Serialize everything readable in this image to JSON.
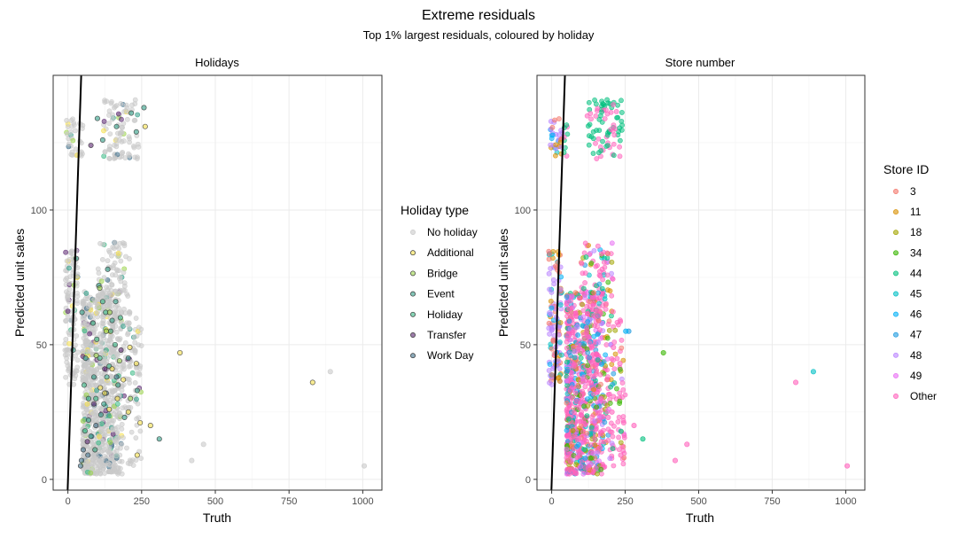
{
  "title": "Extreme residuals",
  "subtitle": "Top 1% largest residuals, coloured by holiday",
  "colors": {
    "no_holiday": "#c9c9c9",
    "additional": "#f5e04a",
    "bridge": "#9bd34a",
    "event": "#2e9c86",
    "holiday": "#37b883",
    "transfer": "#5a2570",
    "work_day": "#3f6f8a",
    "grid": "#ebebeb",
    "border": "#333333",
    "diagonal": "#000000"
  },
  "chart_data": [
    {
      "type": "scatter",
      "panel_title": "Holidays",
      "xlabel": "Truth",
      "ylabel": "Predicted unit sales",
      "xlim": [
        -50,
        1065
      ],
      "ylim": [
        -4,
        150
      ],
      "x_ticks": [
        0,
        250,
        500,
        750,
        1000
      ],
      "x_tick_labels": [
        "0",
        "250",
        "500",
        "750",
        "1000"
      ],
      "y_ticks": [
        0,
        50,
        100
      ],
      "y_tick_labels": [
        "0",
        "50",
        "100"
      ],
      "grid": true,
      "reference_line": {
        "slope": 3.35,
        "intercept": -1
      },
      "legend": {
        "title": "Holiday type",
        "position": "right",
        "entries": [
          {
            "label": "No holiday",
            "color": "#c9c9c9"
          },
          {
            "label": "Additional",
            "color": "#f5e04a"
          },
          {
            "label": "Bridge",
            "color": "#9bd34a"
          },
          {
            "label": "Event",
            "color": "#2e9c86"
          },
          {
            "label": "Holiday",
            "color": "#37b883"
          },
          {
            "label": "Transfer",
            "color": "#5a2570"
          },
          {
            "label": "Work Day",
            "color": "#3f6f8a"
          }
        ]
      },
      "points": [
        {
          "x": 100,
          "y": 134,
          "c": 3
        },
        {
          "x": 165,
          "y": 131,
          "c": 3
        },
        {
          "x": 215,
          "y": 136,
          "c": 3
        },
        {
          "x": 232,
          "y": 129,
          "c": 3
        },
        {
          "x": 258,
          "y": 138,
          "c": 3
        },
        {
          "x": 78,
          "y": 124,
          "c": 5
        },
        {
          "x": 118,
          "y": 126,
          "c": 3
        },
        {
          "x": 235,
          "y": 33,
          "c": 3
        },
        {
          "x": 192,
          "y": 23,
          "c": 3
        },
        {
          "x": 310,
          "y": 15,
          "c": 3
        },
        {
          "x": 28,
          "y": 82,
          "c": 3
        },
        {
          "x": 18,
          "y": 48,
          "c": 3
        },
        {
          "x": 105,
          "y": 72,
          "c": 3
        },
        {
          "x": 135,
          "y": 78,
          "c": 3
        },
        {
          "x": 60,
          "y": 45,
          "c": 3
        },
        {
          "x": 150,
          "y": 59,
          "c": 3
        },
        {
          "x": 88,
          "y": 38,
          "c": 3
        },
        {
          "x": 170,
          "y": 35,
          "c": 3
        },
        {
          "x": 78,
          "y": 16,
          "c": 3
        },
        {
          "x": 122,
          "y": 28,
          "c": 3
        },
        {
          "x": 205,
          "y": 45,
          "c": 3
        },
        {
          "x": 48,
          "y": 62,
          "c": 3
        },
        {
          "x": 112,
          "y": 24,
          "c": 3
        },
        {
          "x": 145,
          "y": 55,
          "c": 3
        },
        {
          "x": 162,
          "y": 66,
          "c": 3
        },
        {
          "x": 92,
          "y": 11,
          "c": 3
        },
        {
          "x": 70,
          "y": 22,
          "c": 3
        },
        {
          "x": 132,
          "y": 38,
          "c": 3
        },
        {
          "x": 55,
          "y": 35,
          "c": 4
        },
        {
          "x": 98,
          "y": 52,
          "c": 4
        },
        {
          "x": 118,
          "y": 66,
          "c": 4
        },
        {
          "x": 85,
          "y": 58,
          "c": 4
        },
        {
          "x": 140,
          "y": 42,
          "c": 4
        },
        {
          "x": 70,
          "y": 30,
          "c": 4
        },
        {
          "x": 160,
          "y": 50,
          "c": 4
        },
        {
          "x": 108,
          "y": 45,
          "c": 4
        },
        {
          "x": 95,
          "y": 30,
          "c": 4
        },
        {
          "x": 58,
          "y": 18,
          "c": 4
        },
        {
          "x": 128,
          "y": 62,
          "c": 4
        },
        {
          "x": 178,
          "y": 60,
          "c": 4
        },
        {
          "x": 43,
          "y": 5,
          "c": 6
        },
        {
          "x": 46,
          "y": 7,
          "c": 6
        },
        {
          "x": 52,
          "y": 11,
          "c": 6
        },
        {
          "x": 68,
          "y": 9,
          "c": 6
        },
        {
          "x": 95,
          "y": 20,
          "c": 6
        },
        {
          "x": 130,
          "y": 32,
          "c": 6
        },
        {
          "x": 165,
          "y": 38,
          "c": 6
        },
        {
          "x": 180,
          "y": 48,
          "c": 5
        },
        {
          "x": 125,
          "y": 41,
          "c": 5
        },
        {
          "x": 88,
          "y": 28,
          "c": 5
        },
        {
          "x": 66,
          "y": 14,
          "c": 5
        },
        {
          "x": 380,
          "y": 47,
          "c": 1
        },
        {
          "x": 830,
          "y": 36,
          "c": 1
        },
        {
          "x": 280,
          "y": 20,
          "c": 1
        },
        {
          "x": 245,
          "y": 21,
          "c": 1
        },
        {
          "x": 168,
          "y": 30,
          "c": 1
        },
        {
          "x": 205,
          "y": 25,
          "c": 1
        },
        {
          "x": 210,
          "y": 49,
          "c": 1
        },
        {
          "x": 125,
          "y": 32,
          "c": 1
        },
        {
          "x": 235,
          "y": 9,
          "c": 1
        },
        {
          "x": 150,
          "y": 41,
          "c": 1
        },
        {
          "x": 110,
          "y": 34,
          "c": 1
        },
        {
          "x": 232,
          "y": 43,
          "c": 1
        },
        {
          "x": 140,
          "y": 26,
          "c": 1
        },
        {
          "x": 188,
          "y": 37,
          "c": 1
        },
        {
          "x": 262,
          "y": 131,
          "c": 1
        },
        {
          "x": 108,
          "y": 71,
          "c": 2
        },
        {
          "x": 142,
          "y": 62,
          "c": 2
        },
        {
          "x": 96,
          "y": 46,
          "c": 2
        },
        {
          "x": 175,
          "y": 44,
          "c": 2
        },
        {
          "x": 212,
          "y": 30,
          "c": 2
        },
        {
          "x": 130,
          "y": 55,
          "c": 2
        },
        {
          "x": 1005,
          "y": 5,
          "c": 0
        },
        {
          "x": 890,
          "y": 40,
          "c": 0
        },
        {
          "x": 460,
          "y": 13,
          "c": 0
        },
        {
          "x": 420,
          "y": 7,
          "c": 0
        }
      ]
    },
    {
      "type": "scatter",
      "panel_title": "Store number",
      "xlabel": "Truth",
      "ylabel": "Predicted unit sales",
      "xlim": [
        -50,
        1065
      ],
      "ylim": [
        -4,
        150
      ],
      "x_ticks": [
        0,
        250,
        500,
        750,
        1000
      ],
      "x_tick_labels": [
        "0",
        "250",
        "500",
        "750",
        "1000"
      ],
      "y_ticks": [
        0,
        50,
        100
      ],
      "y_tick_labels": [
        "0",
        "50",
        "100"
      ],
      "grid": true,
      "reference_line": {
        "slope": 3.35,
        "intercept": -1
      },
      "legend": {
        "title": "Store ID",
        "position": "right",
        "entries": [
          {
            "label": "3",
            "color": "#f4766a"
          },
          {
            "label": "11",
            "color": "#d89000"
          },
          {
            "label": "18",
            "color": "#a3a500"
          },
          {
            "label": "34",
            "color": "#39b600"
          },
          {
            "label": "44",
            "color": "#00bf7d"
          },
          {
            "label": "45",
            "color": "#00bfc4"
          },
          {
            "label": "46",
            "color": "#00b0f6"
          },
          {
            "label": "47",
            "color": "#1f9be0"
          },
          {
            "label": "48",
            "color": "#b983ff"
          },
          {
            "label": "49",
            "color": "#e76bf3"
          },
          {
            "label": "Other",
            "color": "#ff62bc"
          }
        ]
      },
      "points": [
        {
          "x": 1005,
          "y": 5,
          "c": 10
        },
        {
          "x": 830,
          "y": 36,
          "c": 10
        },
        {
          "x": 890,
          "y": 40,
          "c": 5
        },
        {
          "x": 380,
          "y": 47,
          "c": 3
        },
        {
          "x": 460,
          "y": 13,
          "c": 10
        },
        {
          "x": 420,
          "y": 7,
          "c": 10
        },
        {
          "x": 310,
          "y": 15,
          "c": 4
        },
        {
          "x": 280,
          "y": 20,
          "c": 10
        },
        {
          "x": 245,
          "y": 21,
          "c": 10
        },
        {
          "x": 232,
          "y": 43,
          "c": 10
        },
        {
          "x": 235,
          "y": 9,
          "c": 10
        },
        {
          "x": 262,
          "y": 55,
          "c": 7
        },
        {
          "x": 252,
          "y": 55,
          "c": 6
        },
        {
          "x": 210,
          "y": 49,
          "c": 10
        },
        {
          "x": 205,
          "y": 25,
          "c": 10
        },
        {
          "x": 188,
          "y": 37,
          "c": 10
        },
        {
          "x": 192,
          "y": 23,
          "c": 10
        },
        {
          "x": 168,
          "y": 30,
          "c": 10
        }
      ]
    }
  ]
}
